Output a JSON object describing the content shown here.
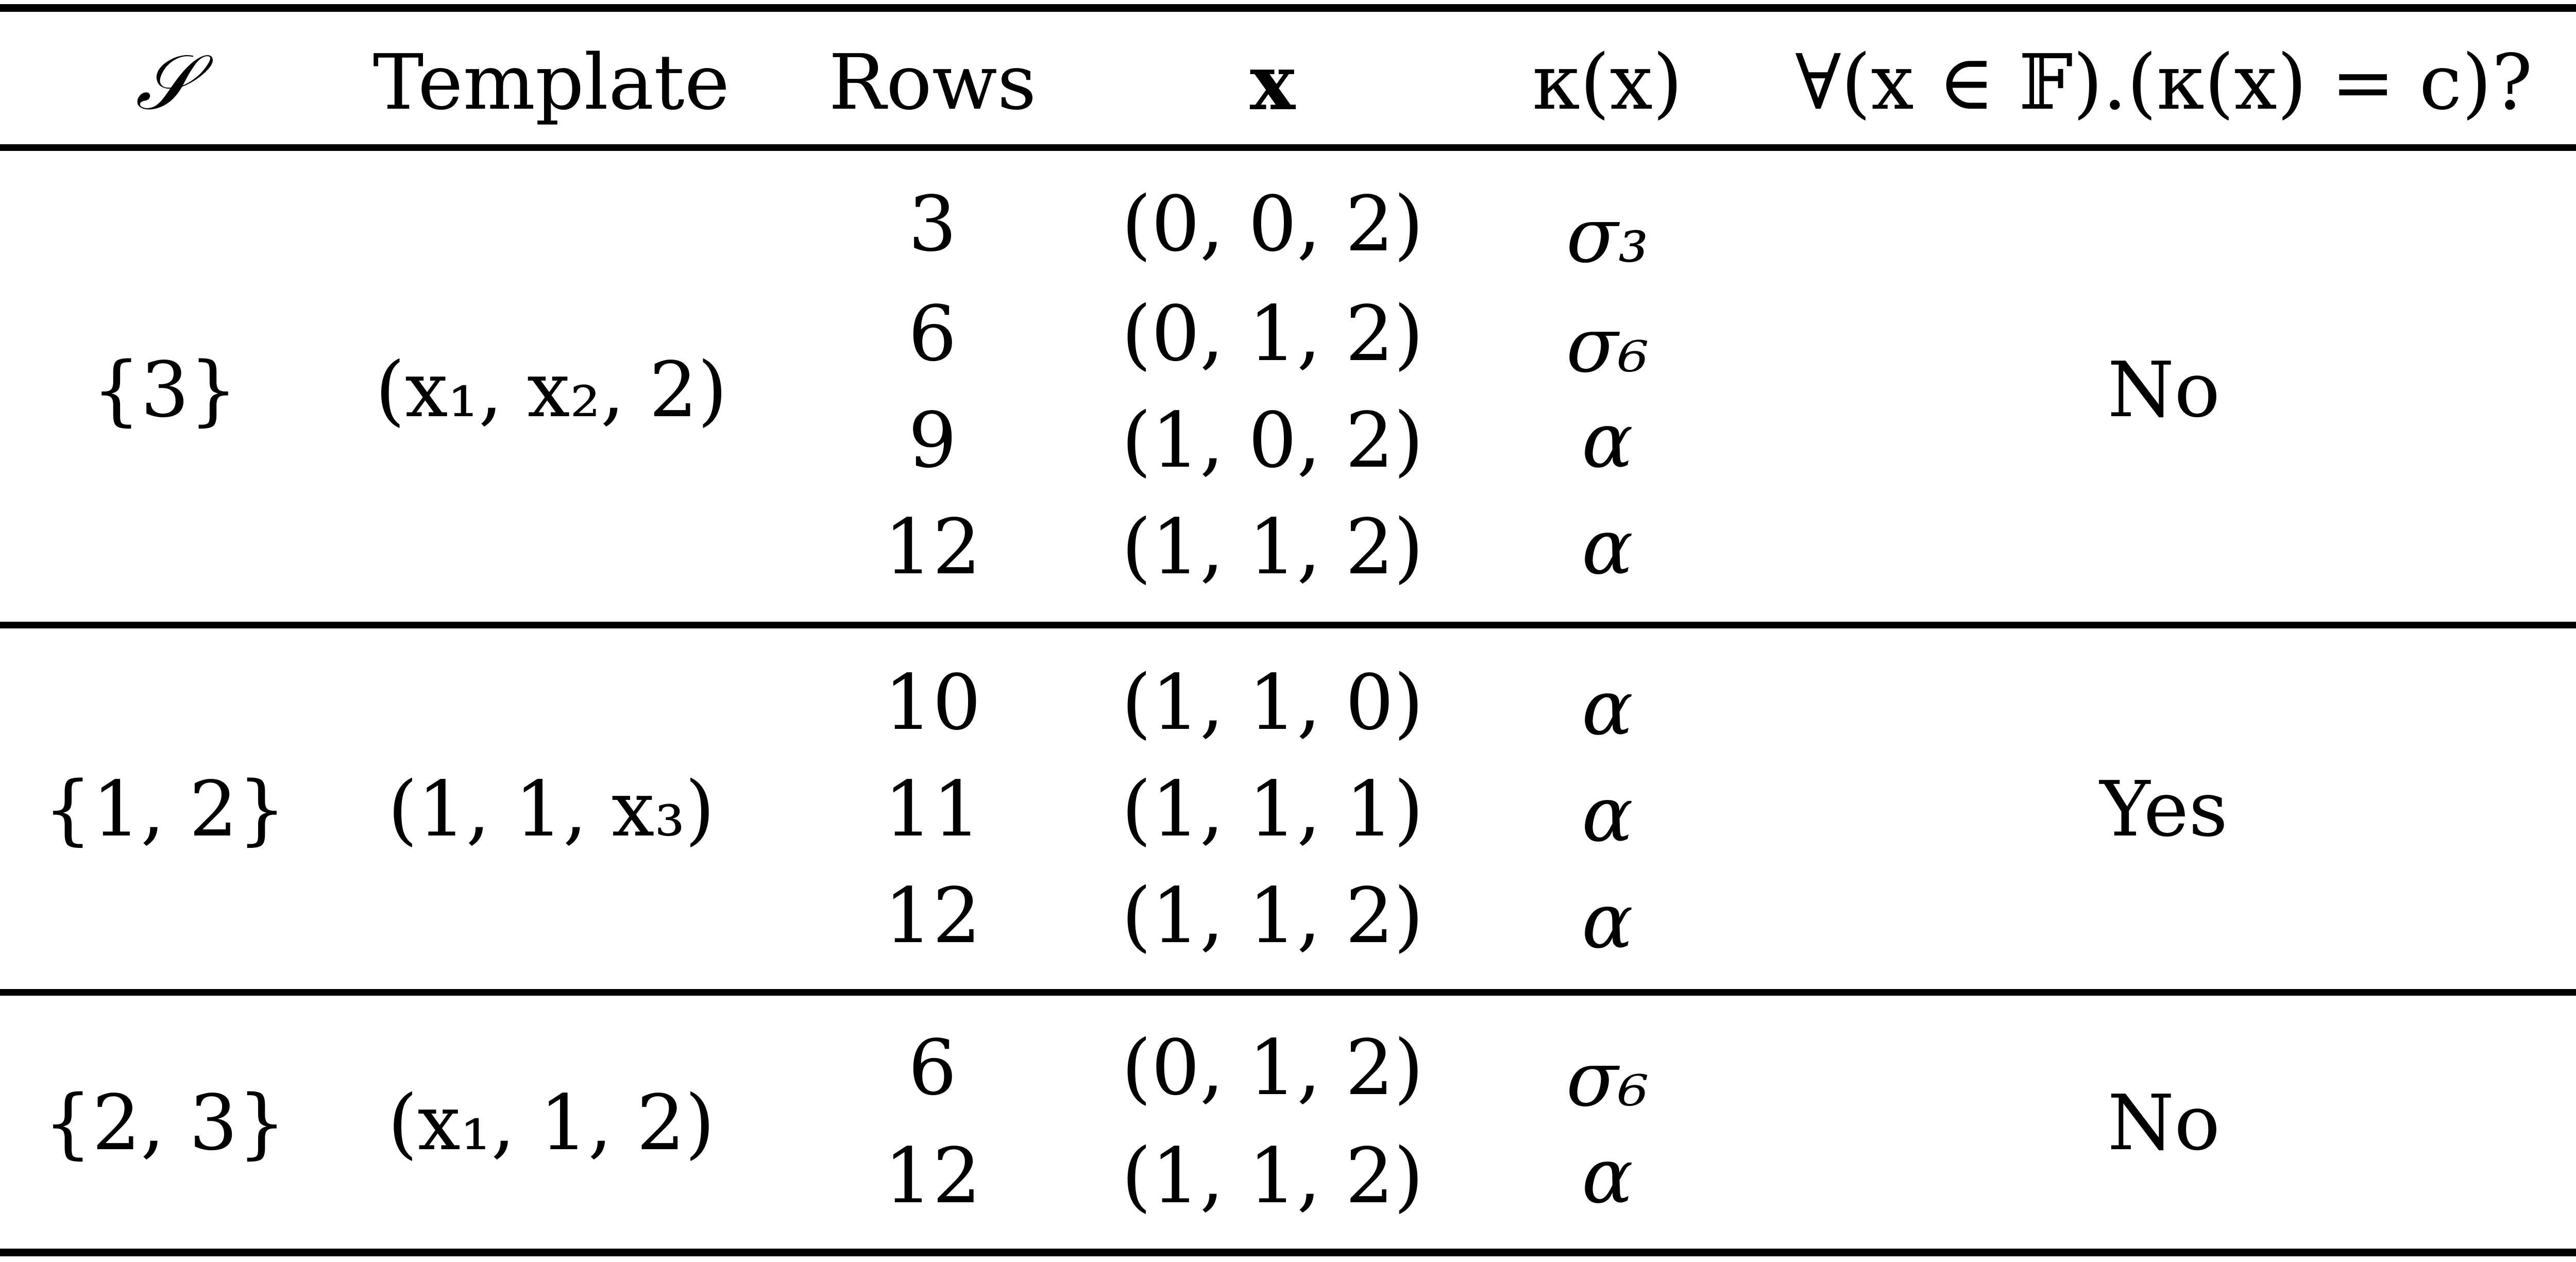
{
  "headers": {
    "s": "𝒮",
    "template": "Template",
    "rows": "Rows",
    "x": "x",
    "kappa": "κ(x)",
    "question": "∀(x ∈ 𝔽).(κ(x) = c)?"
  },
  "groups": [
    {
      "s": "{3}",
      "template": "(x₁, x₂, 2)",
      "answer": "No",
      "entries": [
        {
          "row": "3",
          "x": "(0, 0, 2)",
          "kappa": "σ₃"
        },
        {
          "row": "6",
          "x": "(0, 1, 2)",
          "kappa": "σ₆"
        },
        {
          "row": "9",
          "x": "(1, 0, 2)",
          "kappa": "α"
        },
        {
          "row": "12",
          "x": "(1, 1, 2)",
          "kappa": "α"
        }
      ]
    },
    {
      "s": "{1, 2}",
      "template": "(1, 1, x₃)",
      "answer": "Yes",
      "entries": [
        {
          "row": "10",
          "x": "(1, 1, 0)",
          "kappa": "α"
        },
        {
          "row": "11",
          "x": "(1, 1, 1)",
          "kappa": "α"
        },
        {
          "row": "12",
          "x": "(1, 1, 2)",
          "kappa": "α"
        }
      ]
    },
    {
      "s": "{2, 3}",
      "template": "(x₁, 1, 2)",
      "answer": "No",
      "entries": [
        {
          "row": "6",
          "x": "(0, 1, 2)",
          "kappa": "σ₆"
        },
        {
          "row": "12",
          "x": "(1, 1, 2)",
          "kappa": "α"
        }
      ]
    }
  ]
}
